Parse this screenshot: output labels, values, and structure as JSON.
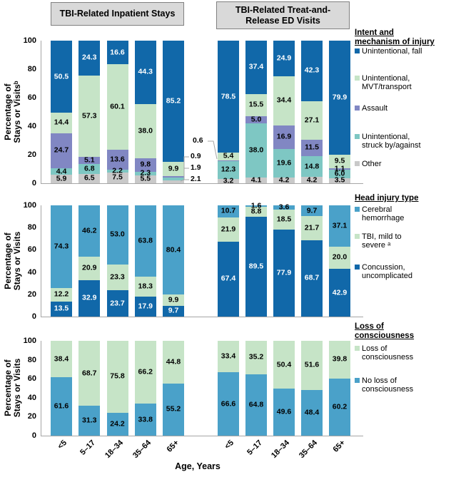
{
  "figure": {
    "panel_headers": [
      "TBI-Related Inpatient Stays",
      "TBI-Related Treat-and-\nRelease ED Visits"
    ],
    "x_axis": {
      "title": "Age, Years",
      "categories": [
        "<5",
        "5–17",
        "18–34",
        "35–64",
        "65+"
      ]
    },
    "colors": {
      "dark_blue": "#1168a9",
      "medium_blue": "#4aa1c9",
      "pale_green": "#c6e4c7",
      "purple": "#8187c3",
      "teal": "#7ec7c3",
      "gray": "#c9c9c9",
      "axis_line": "#a6a6a6",
      "header_fill": "#d9d9d9",
      "header_border": "#808080"
    }
  },
  "chart_data": [
    {
      "type": "bar",
      "subtype": "100pct-stacked-bar",
      "legend_title": "Intent and\nmechanism of injury",
      "ylabel": "Percentage of\nStays or Visitsᵇ",
      "ylim": [
        0,
        100
      ],
      "yticks": [
        0,
        20,
        40,
        60,
        80,
        100
      ],
      "categories": [
        "<5",
        "5–17",
        "18–34",
        "35–64",
        "65+"
      ],
      "stack_order": "top-to-bottom",
      "series": [
        {
          "name": "Unintentional, fall",
          "color": "#1168a9",
          "label_color": "#ffffff"
        },
        {
          "name": "Unintentional,\nMVT/transport",
          "color": "#c6e4c7",
          "label_color": "#000000"
        },
        {
          "name": "Assault",
          "color": "#8187c3",
          "label_color": "#000000"
        },
        {
          "name": "Unintentional,\nstruck by/against",
          "color": "#7ec7c3",
          "label_color": "#000000"
        },
        {
          "name": "Other",
          "color": "#c9c9c9",
          "label_color": "#000000"
        }
      ],
      "groups": [
        {
          "name": "TBI-Related Inpatient Stays",
          "values": [
            [
              50.5,
              14.4,
              24.7,
              4.4,
              5.9
            ],
            [
              24.3,
              57.3,
              5.1,
              6.8,
              6.5
            ],
            [
              16.6,
              60.1,
              13.6,
              2.2,
              7.5
            ],
            [
              44.3,
              38.0,
              9.8,
              2.3,
              5.5
            ],
            [
              85.2,
              9.9,
              0.9,
              1.9,
              2.1
            ]
          ]
        },
        {
          "name": "TBI-Related Treat-and-Release ED Visits",
          "values": [
            [
              78.5,
              5.4,
              0.6,
              12.3,
              3.2
            ],
            [
              37.4,
              15.5,
              5.0,
              38.0,
              4.1
            ],
            [
              24.9,
              34.4,
              16.9,
              19.6,
              4.2
            ],
            [
              42.3,
              27.1,
              11.5,
              14.8,
              4.2
            ],
            [
              79.9,
              9.5,
              1.1,
              6.0,
              3.5
            ]
          ]
        }
      ],
      "hidden_value_labels": [
        [
          0,
          4,
          2
        ],
        [
          0,
          4,
          3
        ],
        [
          0,
          4,
          4
        ],
        [
          1,
          0,
          2
        ]
      ]
    },
    {
      "type": "bar",
      "subtype": "100pct-stacked-bar",
      "legend_title": "Head injury type",
      "ylabel": "Percentage of\nStays or Visits",
      "ylim": [
        0,
        100
      ],
      "yticks": [
        0,
        20,
        40,
        60,
        80,
        100
      ],
      "categories": [
        "<5",
        "5–17",
        "18–34",
        "35–64",
        "65+"
      ],
      "stack_order": "top-to-bottom",
      "series": [
        {
          "name": "Cerebral\nhemorrhage",
          "color": "#4aa1c9",
          "label_color": "#000000"
        },
        {
          "name": "TBI, mild to\nsevere ᵃ",
          "color": "#c6e4c7",
          "label_color": "#000000"
        },
        {
          "name": "Concussion,\nuncomplicated",
          "color": "#1168a9",
          "label_color": "#ffffff"
        }
      ],
      "groups": [
        {
          "name": "TBI-Related Inpatient Stays",
          "values": [
            [
              74.3,
              12.2,
              13.5
            ],
            [
              46.2,
              20.9,
              32.9
            ],
            [
              53.0,
              23.3,
              23.7
            ],
            [
              63.8,
              18.3,
              17.9
            ],
            [
              80.4,
              9.9,
              9.7
            ]
          ]
        },
        {
          "name": "TBI-Related Treat-and-Release ED Visits",
          "values": [
            [
              10.7,
              21.9,
              67.4
            ],
            [
              1.6,
              8.8,
              89.5
            ],
            [
              3.6,
              18.5,
              77.9
            ],
            [
              9.7,
              21.7,
              68.7
            ],
            [
              37.1,
              20.0,
              42.9
            ]
          ]
        }
      ],
      "hidden_value_labels": []
    },
    {
      "type": "bar",
      "subtype": "100pct-stacked-bar",
      "legend_title": "Loss of\nconsciousness",
      "ylabel": "Percentage of\nStays or Visits",
      "ylim": [
        0,
        100
      ],
      "yticks": [
        0,
        20,
        40,
        60,
        80,
        100
      ],
      "categories": [
        "<5",
        "5–17",
        "18–34",
        "35–64",
        "65+"
      ],
      "stack_order": "top-to-bottom",
      "series": [
        {
          "name": "Loss of\nconsciousness",
          "color": "#c6e4c7",
          "label_color": "#000000"
        },
        {
          "name": "No loss of\nconsciousness",
          "color": "#4aa1c9",
          "label_color": "#000000"
        }
      ],
      "groups": [
        {
          "name": "TBI-Related Inpatient Stays",
          "values": [
            [
              38.4,
              61.6
            ],
            [
              68.7,
              31.3
            ],
            [
              75.8,
              24.2
            ],
            [
              66.2,
              33.8
            ],
            [
              44.8,
              55.2
            ]
          ]
        },
        {
          "name": "TBI-Related Treat-and-Release ED Visits",
          "values": [
            [
              33.4,
              66.6
            ],
            [
              35.2,
              64.8
            ],
            [
              50.4,
              49.6
            ],
            [
              51.6,
              48.4
            ],
            [
              39.8,
              60.2
            ]
          ]
        }
      ],
      "hidden_value_labels": []
    }
  ]
}
